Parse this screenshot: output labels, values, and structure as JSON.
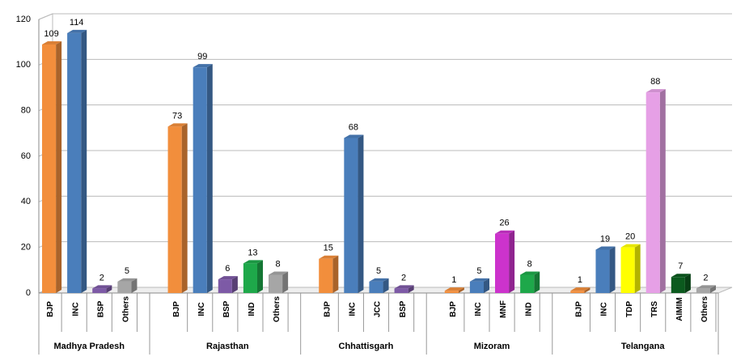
{
  "chart_data": {
    "type": "bar",
    "ylim": [
      0,
      120
    ],
    "yticks": [
      0,
      20,
      40,
      60,
      80,
      100,
      120
    ],
    "grid": true,
    "groups": [
      {
        "name": "Madhya Pradesh",
        "categories": [
          "BJP",
          "INC",
          "BSP",
          "Others"
        ],
        "values": [
          109,
          114,
          2,
          5
        ],
        "colors": [
          "#f28e3c",
          "#4a7ebb",
          "#7d5aa6",
          "#a6a6a6"
        ]
      },
      {
        "name": "Rajasthan",
        "categories": [
          "BJP",
          "INC",
          "BSP",
          "IND",
          "Others"
        ],
        "values": [
          73,
          99,
          6,
          13,
          8
        ],
        "colors": [
          "#f28e3c",
          "#4a7ebb",
          "#7d5aa6",
          "#1ea84a",
          "#a6a6a6"
        ]
      },
      {
        "name": "Chhattisgarh",
        "categories": [
          "BJP",
          "INC",
          "JCC",
          "BSP"
        ],
        "values": [
          15,
          68,
          5,
          2
        ],
        "colors": [
          "#f28e3c",
          "#4a7ebb",
          "#4a7ebb",
          "#7d5aa6"
        ]
      },
      {
        "name": "Mizoram",
        "categories": [
          "BJP",
          "INC",
          "MNF",
          "IND"
        ],
        "values": [
          1,
          5,
          26,
          8
        ],
        "colors": [
          "#f28e3c",
          "#4a7ebb",
          "#cc33cc",
          "#1ea84a"
        ]
      },
      {
        "name": "Telangana",
        "categories": [
          "BJP",
          "INC",
          "TDP",
          "TRS",
          "AIMIM",
          "Others"
        ],
        "values": [
          1,
          19,
          20,
          88,
          7,
          2
        ],
        "colors": [
          "#f28e3c",
          "#4a7ebb",
          "#ffff00",
          "#e6a0e6",
          "#0b5a1e",
          "#a6a6a6"
        ]
      }
    ]
  }
}
